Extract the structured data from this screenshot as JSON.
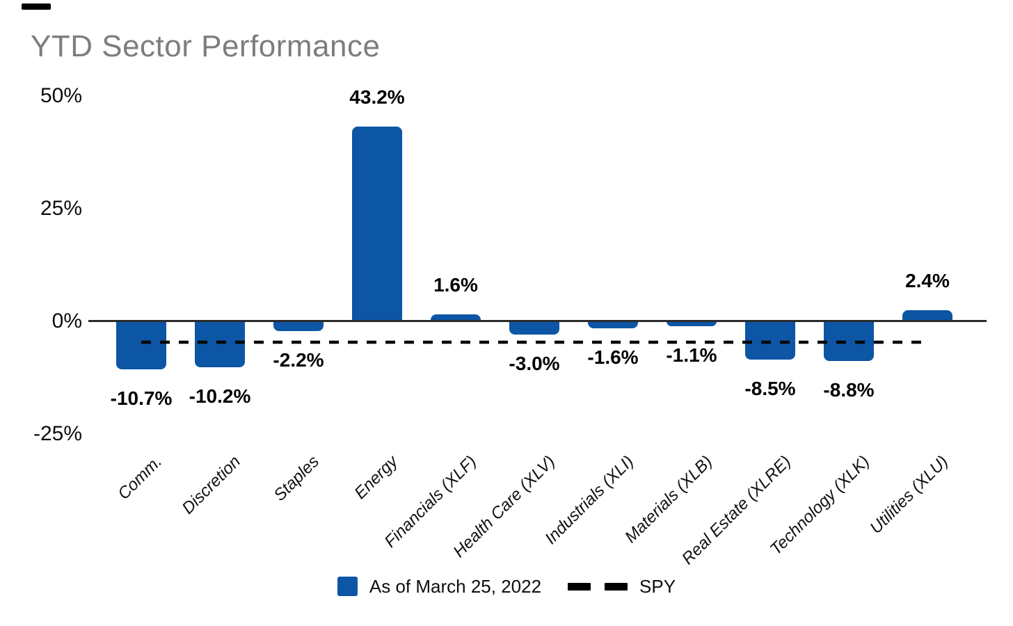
{
  "title": "YTD Sector Performance",
  "chart_data": {
    "type": "bar",
    "title": "YTD Sector Performance",
    "categories": [
      "Comm.",
      "Discretion",
      "Staples",
      "Energy",
      "Financials (XLF)",
      "Health Care (XLV)",
      "Industrials (XLI)",
      "Materials (XLB)",
      "Real Estate (XLRE)",
      "Technology (XLK)",
      "Utilities (XLU)"
    ],
    "values": [
      -10.7,
      -10.2,
      -2.2,
      43.2,
      1.6,
      -3.0,
      -1.6,
      -1.1,
      -8.5,
      -8.8,
      2.4
    ],
    "data_labels": [
      "-10.7%",
      "-10.2%",
      "-2.2%",
      "43.2%",
      "1.6%",
      "-3.0%",
      "-1.6%",
      "-1.1%",
      "-8.5%",
      "-8.8%",
      "2.4%"
    ],
    "unit": "%",
    "yticks": [
      {
        "label": "50%",
        "value": 50
      },
      {
        "label": "25%",
        "value": 25
      },
      {
        "label": "0%",
        "value": 0
      },
      {
        "label": "-25%",
        "value": -25
      }
    ],
    "ylim": [
      -25,
      50
    ],
    "grid": false,
    "bar_color": "#0D55A5",
    "reference_line": {
      "name": "SPY",
      "value": -4.5,
      "style": "dashed",
      "color": "#000000"
    },
    "legend_position": "bottom",
    "legend": [
      {
        "label": "As of March 25, 2022",
        "swatch": "square",
        "color": "#0D55A5"
      },
      {
        "label": "SPY",
        "swatch": "dashed-line",
        "color": "#000000"
      }
    ]
  }
}
